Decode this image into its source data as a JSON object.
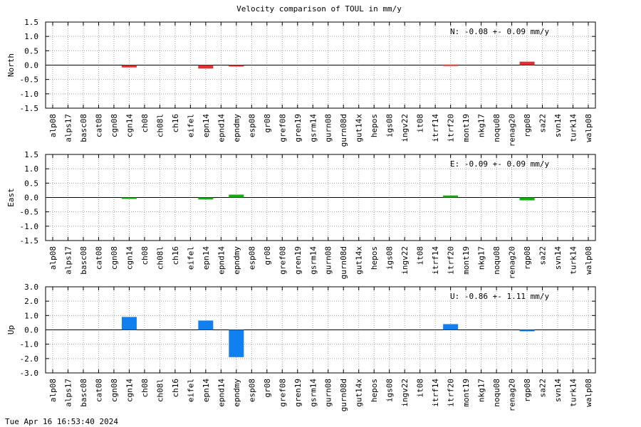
{
  "title": "Velocity comparison of TOUL in mm/y",
  "timestamp": "Tue Apr 16 16:53:40 2024",
  "chart_data": [
    {
      "type": "bar",
      "ylabel": "North",
      "stat": "N:  -0.08 +-  0.09 mm/y",
      "color": "#e03030",
      "ylim": [
        -1.5,
        1.5
      ],
      "yticks": [
        1.5,
        1.0,
        0.5,
        0.0,
        -0.5,
        -1.0,
        -1.5
      ],
      "ytick_labels": [
        "1.5",
        "1.0",
        "0.5",
        "0.0",
        "-0.5",
        "-1.0",
        "-1.5"
      ],
      "grid": true,
      "categories": [
        "alp08",
        "alps17",
        "basc08",
        "cat08",
        "cgn08",
        "cgn14",
        "ch08",
        "ch08l",
        "ch16",
        "eifel",
        "epn14",
        "epnd14",
        "epndmy",
        "esp08",
        "gr08",
        "gref08",
        "gren19",
        "gsrm14",
        "gurn08",
        "gurn08d",
        "gut14x",
        "hepos",
        "igs08",
        "ingv22",
        "it08",
        "itrf14",
        "itrf20",
        "mont19",
        "nkg17",
        "noqu08",
        "renag20",
        "rgp08",
        "sa22",
        "svn14",
        "turk14",
        "walp08"
      ],
      "values": [
        0,
        0,
        0,
        0,
        0,
        -0.08,
        0,
        0,
        0,
        0,
        -0.12,
        0,
        -0.03,
        0,
        0,
        0,
        0,
        0,
        0,
        0,
        0,
        0,
        0,
        0,
        0,
        0,
        0.02,
        0,
        0,
        0,
        0,
        0.12,
        0,
        0,
        0,
        0
      ]
    },
    {
      "type": "bar",
      "ylabel": "East",
      "stat": "E:  -0.09 +-  0.09 mm/y",
      "color": "#10b010",
      "ylim": [
        -1.5,
        1.5
      ],
      "yticks": [
        1.5,
        1.0,
        0.5,
        0.0,
        -0.5,
        -1.0,
        -1.5
      ],
      "ytick_labels": [
        "1.5",
        "1.0",
        "0.5",
        "0.0",
        "-0.5",
        "-1.0",
        "-1.5"
      ],
      "grid": true,
      "categories": [
        "alp08",
        "alps17",
        "basc08",
        "cat08",
        "cgn08",
        "cgn14",
        "ch08",
        "ch08l",
        "ch16",
        "eifel",
        "epn14",
        "epnd14",
        "epndmy",
        "esp08",
        "gr08",
        "gref08",
        "gren19",
        "gsrm14",
        "gurn08",
        "gurn08d",
        "gut14x",
        "hepos",
        "igs08",
        "ingv22",
        "it08",
        "itrf14",
        "itrf20",
        "mont19",
        "nkg17",
        "noqu08",
        "renag20",
        "rgp08",
        "sa22",
        "svn14",
        "turk14",
        "walp08"
      ],
      "values": [
        0,
        0,
        0,
        0,
        0,
        -0.05,
        0,
        0,
        0,
        0,
        -0.07,
        0,
        0.1,
        0,
        0,
        0,
        0,
        0,
        0,
        0,
        0,
        0,
        0,
        0,
        0,
        0,
        0.07,
        0,
        0,
        0,
        0,
        -0.1,
        0,
        0,
        0,
        0
      ]
    },
    {
      "type": "bar",
      "ylabel": "Up",
      "stat": "U:  -0.86 +-  1.11 mm/y",
      "color": "#1080f0",
      "ylim": [
        -3.0,
        3.0
      ],
      "yticks": [
        3.0,
        2.0,
        1.0,
        0.0,
        -1.0,
        -2.0,
        -3.0
      ],
      "ytick_labels": [
        "3.0",
        "2.0",
        "1.0",
        "0.0",
        "-1.0",
        "-2.0",
        "-3.0"
      ],
      "grid": true,
      "categories": [
        "alp08",
        "alps17",
        "basc08",
        "cat08",
        "cgn08",
        "cgn14",
        "ch08",
        "ch08l",
        "ch16",
        "eifel",
        "epn14",
        "epnd14",
        "epndmy",
        "esp08",
        "gr08",
        "gref08",
        "gren19",
        "gsrm14",
        "gurn08",
        "gurn08d",
        "gut14x",
        "hepos",
        "igs08",
        "ingv22",
        "it08",
        "itrf14",
        "itrf20",
        "mont19",
        "nkg17",
        "noqu08",
        "renag20",
        "rgp08",
        "sa22",
        "svn14",
        "turk14",
        "walp08"
      ],
      "values": [
        0,
        0,
        0,
        0,
        0,
        0.9,
        0,
        0,
        0,
        0,
        0.65,
        0,
        -1.9,
        0,
        0,
        0,
        0,
        0,
        0,
        0,
        0,
        0,
        0,
        0,
        0,
        0,
        0.4,
        0,
        0,
        0,
        0,
        -0.05,
        0,
        0,
        0,
        0
      ]
    }
  ]
}
